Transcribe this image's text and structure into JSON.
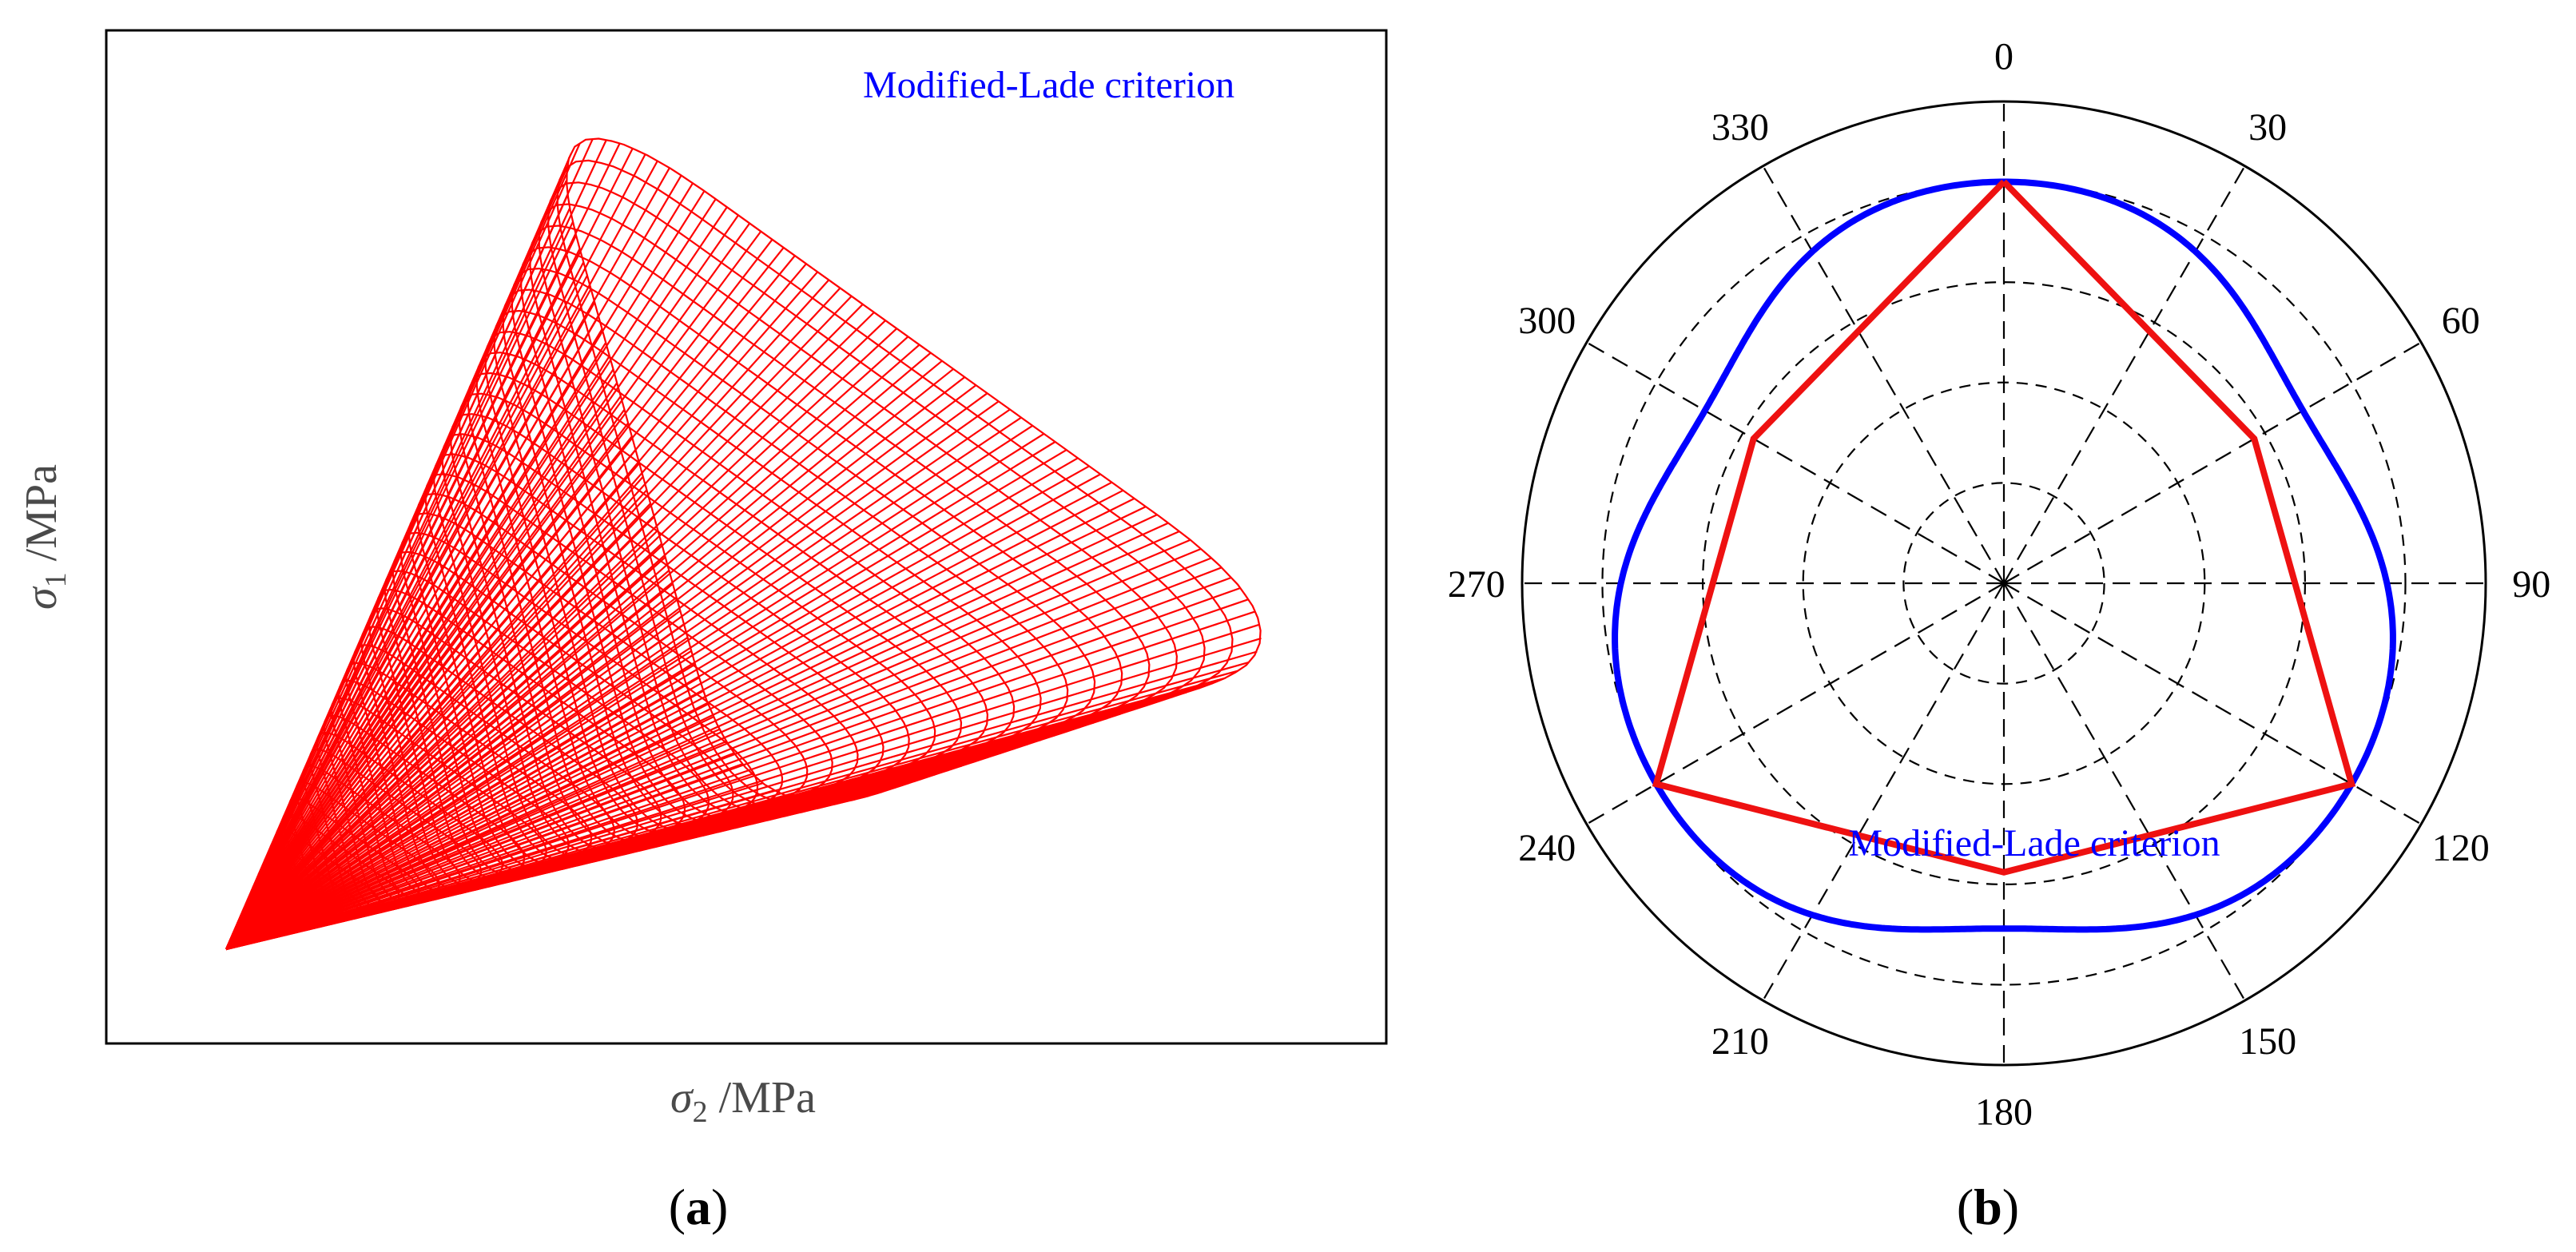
{
  "colors": {
    "surface_mesh": "#ff0000",
    "modified_lade": "#0000ff",
    "red_series": "#ee1111",
    "grid": "#000000",
    "frame": "#000000"
  },
  "panel_a": {
    "label_open": "(",
    "label_letter": "a",
    "label_close": ")",
    "legend": "Modified-Lade criterion",
    "ylabel_sym": "σ",
    "ylabel_sub": "1",
    "ylabel_unit": " /MPa",
    "xlabel_sym": "σ",
    "xlabel_sub": "2",
    "xlabel_unit": " /MPa"
  },
  "panel_b": {
    "label_open": "(",
    "label_letter": "b",
    "label_close": ")",
    "legend": "Modified-Lade criterion"
  },
  "chart_data": [
    {
      "type": "surface",
      "panel": "a",
      "title": "",
      "description_legend": "Modified-Lade criterion",
      "xlabel": "σ2 /MPa",
      "ylabel": "σ1 /MPa",
      "series": [
        {
          "name": "Modified-Lade criterion",
          "color": "#ff0000"
        }
      ]
    },
    {
      "type": "polar",
      "panel": "b",
      "legend": "Modified-Lade criterion",
      "angle_ticks": [
        0,
        30,
        60,
        90,
        120,
        150,
        180,
        210,
        240,
        270,
        300,
        330
      ],
      "angle_tick_labels": [
        "0",
        "30",
        "60",
        "90",
        "120",
        "150",
        "180",
        "210",
        "240",
        "270",
        "300",
        "330"
      ],
      "angle_zero": "top",
      "angle_direction": "clockwise",
      "radial_grid": [
        0.25,
        0.5,
        0.75,
        1.0
      ],
      "radial_range": [
        0,
        1.2
      ],
      "series": [
        {
          "name": "Modified-Lade criterion",
          "color": "#0000ff",
          "shape": "rounded-triangle",
          "r_max": 1.0,
          "r_max_angles": [
            0,
            120,
            240
          ],
          "r_min": 0.86,
          "r_min_angles": [
            60,
            180,
            300
          ]
        },
        {
          "name": "",
          "color": "#ee1111",
          "theta": [
            0,
            60,
            120,
            180,
            240,
            300,
            0
          ],
          "r": [
            1.0,
            0.72,
            1.0,
            0.72,
            1.0,
            0.72,
            1.0
          ]
        }
      ]
    }
  ]
}
